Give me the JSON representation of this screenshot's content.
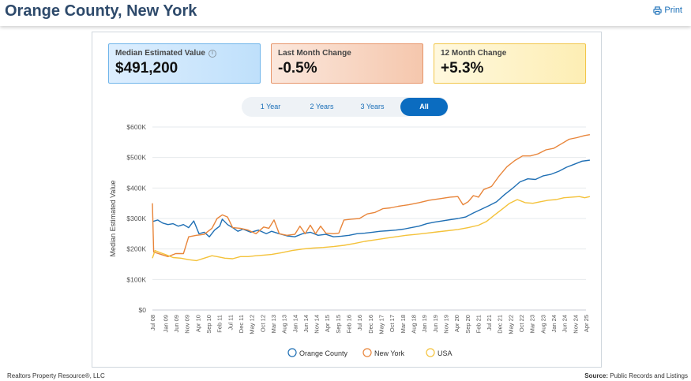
{
  "header": {
    "title": "Orange County, New York",
    "print_label": "Print",
    "print_icon": "printer-icon"
  },
  "kpis": [
    {
      "label": "Median Estimated Value",
      "value": "$491,200",
      "icon": "info-icon",
      "info_glyph": "i"
    },
    {
      "label": "Last Month Change",
      "value": "-0.5%"
    },
    {
      "label": "12 Month Change",
      "value": "+5.3%"
    }
  ],
  "range_tabs": [
    "1 Year",
    "2 Years",
    "3 Years",
    "All"
  ],
  "range_selected": "All",
  "chart_data": {
    "type": "line",
    "ylabel": "Median Estimated Value",
    "xlabel": "",
    "ylim": [
      0,
      600000
    ],
    "yticks": [
      "$0",
      "$100K",
      "$200K",
      "$300K",
      "$400K",
      "$500K",
      "$600K"
    ],
    "xticks": [
      "Jul 08",
      "Jan 09",
      "Jun 09",
      "Nov 09",
      "Apr 10",
      "Sep 10",
      "Feb 11",
      "Jul 11",
      "Dec 11",
      "May 12",
      "Oct 12",
      "Mar 13",
      "Aug 13",
      "Jan 14",
      "Jun 14",
      "Nov 14",
      "Apr 15",
      "Sep 15",
      "Feb 16",
      "Jul 16",
      "Dec 16",
      "May 17",
      "Oct 17",
      "Mar 18",
      "Aug 18",
      "Jan 19",
      "Jun 19",
      "Nov 19",
      "Apr 20",
      "Sep 20",
      "Feb 21",
      "Jul 21",
      "Dec 21",
      "May 22",
      "Oct 22",
      "Mar 23",
      "Aug 23",
      "Jan 24",
      "Jun 24",
      "Nov 24",
      "Apr 25"
    ],
    "x_start": "Jul 08",
    "x_end": "Apr 25",
    "grid": true,
    "legend_position": "bottom",
    "series": [
      {
        "name": "Orange County",
        "color": "#1f6fb4",
        "points": [
          [
            2008.5,
            290000
          ],
          [
            2008.7,
            295000
          ],
          [
            2008.9,
            285000
          ],
          [
            2009.1,
            280000
          ],
          [
            2009.3,
            283000
          ],
          [
            2009.5,
            275000
          ],
          [
            2009.7,
            280000
          ],
          [
            2009.9,
            270000
          ],
          [
            2010.1,
            292000
          ],
          [
            2010.3,
            250000
          ],
          [
            2010.5,
            255000
          ],
          [
            2010.7,
            240000
          ],
          [
            2010.9,
            262000
          ],
          [
            2011.1,
            275000
          ],
          [
            2011.2,
            298000
          ],
          [
            2011.4,
            280000
          ],
          [
            2011.6,
            270000
          ],
          [
            2011.8,
            258000
          ],
          [
            2012.0,
            265000
          ],
          [
            2012.3,
            255000
          ],
          [
            2012.6,
            262000
          ],
          [
            2012.9,
            250000
          ],
          [
            2013.1,
            258000
          ],
          [
            2013.4,
            250000
          ],
          [
            2013.7,
            243000
          ],
          [
            2014.0,
            240000
          ],
          [
            2014.3,
            250000
          ],
          [
            2014.6,
            255000
          ],
          [
            2014.9,
            245000
          ],
          [
            2015.2,
            248000
          ],
          [
            2015.5,
            240000
          ],
          [
            2015.8,
            242000
          ],
          [
            2016.1,
            245000
          ],
          [
            2016.4,
            250000
          ],
          [
            2016.7,
            252000
          ],
          [
            2017.0,
            255000
          ],
          [
            2017.3,
            258000
          ],
          [
            2017.6,
            260000
          ],
          [
            2017.9,
            262000
          ],
          [
            2018.2,
            265000
          ],
          [
            2018.5,
            270000
          ],
          [
            2018.8,
            275000
          ],
          [
            2019.1,
            283000
          ],
          [
            2019.4,
            288000
          ],
          [
            2019.7,
            292000
          ],
          [
            2020.0,
            296000
          ],
          [
            2020.3,
            300000
          ],
          [
            2020.6,
            305000
          ],
          [
            2020.9,
            318000
          ],
          [
            2021.2,
            330000
          ],
          [
            2021.5,
            342000
          ],
          [
            2021.8,
            355000
          ],
          [
            2022.1,
            378000
          ],
          [
            2022.4,
            398000
          ],
          [
            2022.7,
            420000
          ],
          [
            2023.0,
            430000
          ],
          [
            2023.3,
            428000
          ],
          [
            2023.6,
            440000
          ],
          [
            2023.9,
            445000
          ],
          [
            2024.2,
            455000
          ],
          [
            2024.5,
            468000
          ],
          [
            2024.8,
            478000
          ],
          [
            2025.1,
            488000
          ],
          [
            2025.3,
            490000
          ],
          [
            2025.4,
            491200
          ]
        ]
      },
      {
        "name": "New York",
        "color": "#e8853a",
        "points": [
          [
            2008.5,
            350000
          ],
          [
            2008.55,
            190000
          ],
          [
            2008.8,
            183000
          ],
          [
            2009.1,
            175000
          ],
          [
            2009.4,
            185000
          ],
          [
            2009.7,
            185000
          ],
          [
            2009.9,
            240000
          ],
          [
            2010.2,
            245000
          ],
          [
            2010.5,
            248000
          ],
          [
            2010.8,
            268000
          ],
          [
            2011.0,
            300000
          ],
          [
            2011.2,
            312000
          ],
          [
            2011.4,
            305000
          ],
          [
            2011.6,
            270000
          ],
          [
            2011.9,
            268000
          ],
          [
            2012.2,
            262000
          ],
          [
            2012.5,
            250000
          ],
          [
            2012.8,
            272000
          ],
          [
            2013.0,
            268000
          ],
          [
            2013.2,
            295000
          ],
          [
            2013.4,
            250000
          ],
          [
            2013.7,
            245000
          ],
          [
            2014.0,
            248000
          ],
          [
            2014.2,
            275000
          ],
          [
            2014.4,
            250000
          ],
          [
            2014.6,
            278000
          ],
          [
            2014.8,
            250000
          ],
          [
            2015.0,
            275000
          ],
          [
            2015.2,
            252000
          ],
          [
            2015.5,
            250000
          ],
          [
            2015.7,
            252000
          ],
          [
            2015.9,
            295000
          ],
          [
            2016.2,
            298000
          ],
          [
            2016.5,
            300000
          ],
          [
            2016.8,
            315000
          ],
          [
            2017.1,
            320000
          ],
          [
            2017.4,
            332000
          ],
          [
            2017.7,
            335000
          ],
          [
            2018.0,
            340000
          ],
          [
            2018.4,
            345000
          ],
          [
            2018.8,
            352000
          ],
          [
            2019.2,
            360000
          ],
          [
            2019.6,
            365000
          ],
          [
            2020.0,
            370000
          ],
          [
            2020.3,
            372000
          ],
          [
            2020.5,
            345000
          ],
          [
            2020.7,
            355000
          ],
          [
            2020.9,
            375000
          ],
          [
            2021.1,
            370000
          ],
          [
            2021.3,
            395000
          ],
          [
            2021.6,
            405000
          ],
          [
            2021.9,
            440000
          ],
          [
            2022.2,
            470000
          ],
          [
            2022.5,
            490000
          ],
          [
            2022.8,
            505000
          ],
          [
            2023.1,
            505000
          ],
          [
            2023.4,
            512000
          ],
          [
            2023.7,
            525000
          ],
          [
            2024.0,
            530000
          ],
          [
            2024.3,
            545000
          ],
          [
            2024.6,
            560000
          ],
          [
            2024.9,
            565000
          ],
          [
            2025.2,
            572000
          ],
          [
            2025.4,
            575000
          ]
        ]
      },
      {
        "name": "USA",
        "color": "#f4c23a",
        "points": [
          [
            2008.5,
            170000
          ],
          [
            2008.6,
            195000
          ],
          [
            2008.8,
            188000
          ],
          [
            2009.0,
            182000
          ],
          [
            2009.3,
            172000
          ],
          [
            2009.6,
            170000
          ],
          [
            2009.9,
            165000
          ],
          [
            2010.2,
            162000
          ],
          [
            2010.5,
            170000
          ],
          [
            2010.8,
            178000
          ],
          [
            2011.0,
            175000
          ],
          [
            2011.3,
            170000
          ],
          [
            2011.6,
            168000
          ],
          [
            2011.9,
            175000
          ],
          [
            2012.2,
            175000
          ],
          [
            2012.5,
            178000
          ],
          [
            2012.8,
            180000
          ],
          [
            2013.1,
            182000
          ],
          [
            2013.5,
            188000
          ],
          [
            2013.9,
            195000
          ],
          [
            2014.3,
            200000
          ],
          [
            2014.7,
            203000
          ],
          [
            2015.1,
            205000
          ],
          [
            2015.5,
            208000
          ],
          [
            2015.9,
            212000
          ],
          [
            2016.3,
            218000
          ],
          [
            2016.7,
            225000
          ],
          [
            2017.1,
            230000
          ],
          [
            2017.5,
            235000
          ],
          [
            2017.9,
            240000
          ],
          [
            2018.3,
            245000
          ],
          [
            2018.7,
            248000
          ],
          [
            2019.1,
            252000
          ],
          [
            2019.5,
            256000
          ],
          [
            2019.9,
            260000
          ],
          [
            2020.3,
            264000
          ],
          [
            2020.7,
            270000
          ],
          [
            2021.1,
            278000
          ],
          [
            2021.4,
            290000
          ],
          [
            2021.7,
            310000
          ],
          [
            2022.0,
            330000
          ],
          [
            2022.3,
            350000
          ],
          [
            2022.6,
            362000
          ],
          [
            2022.9,
            352000
          ],
          [
            2023.2,
            350000
          ],
          [
            2023.5,
            355000
          ],
          [
            2023.8,
            360000
          ],
          [
            2024.1,
            362000
          ],
          [
            2024.4,
            368000
          ],
          [
            2024.7,
            370000
          ],
          [
            2025.0,
            372000
          ],
          [
            2025.2,
            368000
          ],
          [
            2025.4,
            372000
          ]
        ]
      }
    ]
  },
  "footer": {
    "left": "Realtors Property Resource®, LLC",
    "right_label": "Source:",
    "right_value": "Public Records and Listings"
  }
}
